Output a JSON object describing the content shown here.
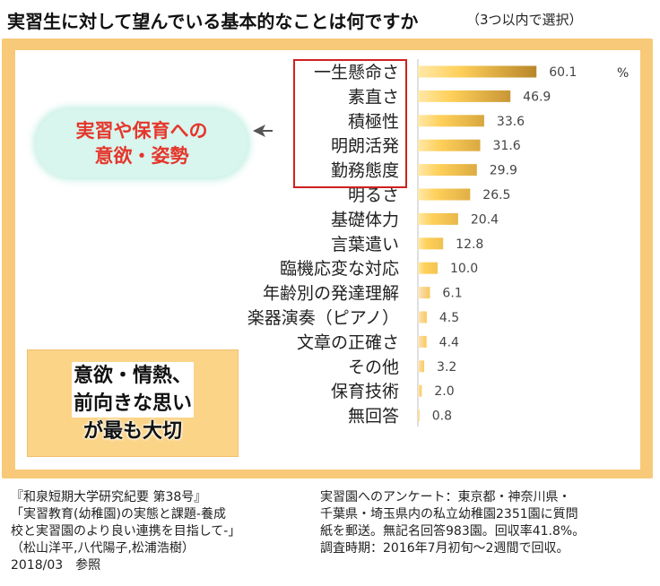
{
  "title": "実習生に対して望んでいる基本的なことは何ですか",
  "subtitle": "（3つ以内で選択）",
  "callout": {
    "lines": [
      "実習や保育への",
      "意欲・姿勢"
    ]
  },
  "note": {
    "lines": [
      "意欲・情熱、",
      "前向きな思い",
      "が最も大切"
    ]
  },
  "source_left": [
    "『和泉短期大学研究紀要 第38号』",
    "「実習教育(幼稚園)の実態と課題-養成",
    "校と実習園のより良い連携を目指して-」",
    "（松山洋平,八代陽子,松浦浩樹）",
    "2018/03　参照"
  ],
  "source_right": [
    "実習園へのアンケート：東京都・神奈川県・",
    "千葉県・埼玉県内の私立幼稚園2351園に質問",
    "紙を郵送。無記名回答983園。回収率41.8%。",
    "調査時期：2016年7月初旬～2週間で回収。"
  ],
  "colors": {
    "frame": "#f7c978",
    "bubble_text": "#e5362b",
    "highlight_border": "#d02020",
    "bar_dark": "#b8862a",
    "bar_light": "#ffd05a"
  },
  "chart_data": {
    "type": "bar",
    "orientation": "horizontal",
    "unit": "%",
    "categories": [
      "一生懸命さ",
      "素直さ",
      "積極性",
      "明朗活発",
      "勤務態度",
      "明るさ",
      "基礎体力",
      "言葉遣い",
      "臨機応変な対応",
      "年齢別の発達理解",
      "楽器演奏（ピアノ）",
      "文章の正確さ",
      "その他",
      "保育技術",
      "無回答"
    ],
    "values": [
      60.1,
      46.9,
      33.6,
      31.6,
      29.9,
      26.5,
      20.4,
      12.8,
      10.0,
      6.1,
      4.5,
      4.4,
      3.2,
      2.0,
      0.8
    ],
    "value_labels": [
      "60.1",
      "46.9",
      "33.6",
      "31.6",
      "29.9",
      "26.5",
      "20.4",
      "12.8",
      "10.0",
      "6.1",
      "4.5",
      "4.4",
      "3.2",
      "2.0",
      "0.8"
    ],
    "highlighted_categories": [
      "一生懸命さ",
      "素直さ",
      "積極性",
      "明朗活発",
      "勤務態度"
    ],
    "xlim": [
      0,
      100
    ],
    "grid": false
  }
}
